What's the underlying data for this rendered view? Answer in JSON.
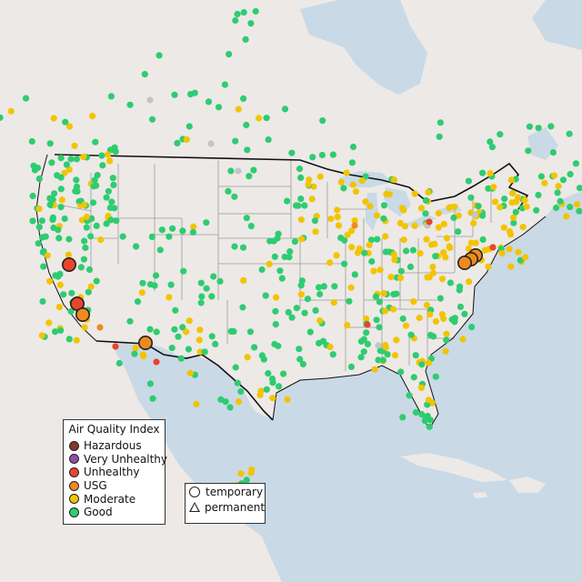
{
  "legend_aqi": {
    "title": "Air Quality Index",
    "items": [
      {
        "label": "Hazardous",
        "color": "#7e3b2e"
      },
      {
        "label": "Very Unhealthy",
        "color": "#8f4fa3"
      },
      {
        "label": "Unhealthy",
        "color": "#e8452d"
      },
      {
        "label": "USG",
        "color": "#ef8a1e"
      },
      {
        "label": "Moderate",
        "color": "#f2c400"
      },
      {
        "label": "Good",
        "color": "#2ecc71"
      }
    ]
  },
  "legend_type": {
    "items": [
      {
        "label": "temporary",
        "shape": "circle"
      },
      {
        "label": "permanent",
        "shape": "triangle"
      }
    ]
  },
  "colors": {
    "water": "#c9d9e6",
    "land": "#ede9e6",
    "border": "#111111",
    "state_line": "#9a9a9a",
    "nodata": "#c4c4c4"
  }
}
